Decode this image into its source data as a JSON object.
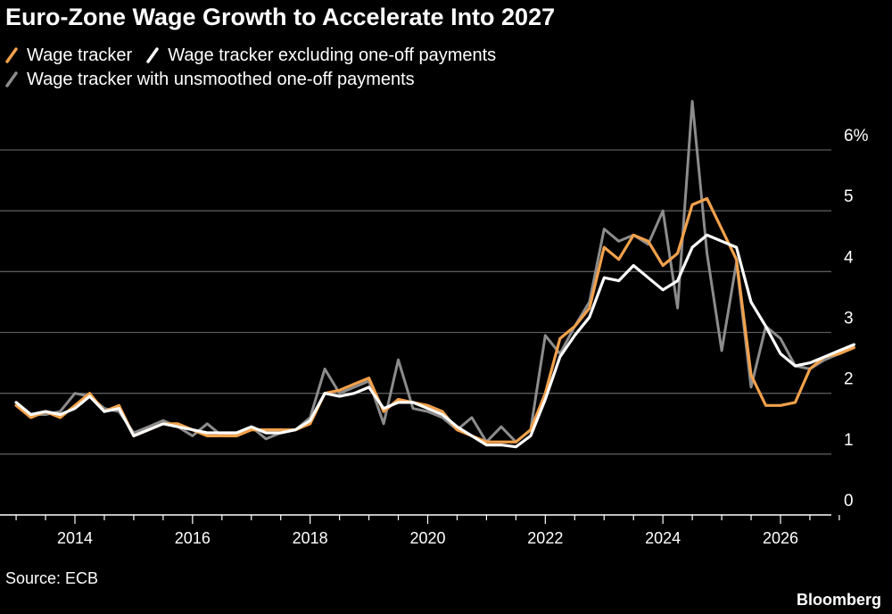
{
  "chart_data": {
    "type": "line",
    "title": "Euro-Zone Wage Growth to Accelerate Into 2027",
    "xlabel": "",
    "ylabel": "",
    "y_unit": "%",
    "ylim": [
      0,
      6.5
    ],
    "xlim": [
      2012.9,
      2027.5
    ],
    "y_ticks": [
      0,
      1,
      2,
      3,
      4,
      5,
      6
    ],
    "y_tick_labels": [
      "0",
      "1",
      "2",
      "3",
      "4",
      "5",
      "6%"
    ],
    "x_ticks": [
      2014,
      2016,
      2018,
      2020,
      2022,
      2024,
      2026
    ],
    "x_tick_labels": [
      "2014",
      "2016",
      "2018",
      "2020",
      "2022",
      "2024",
      "2026"
    ],
    "grid": true,
    "legend_position": "top-left",
    "series": [
      {
        "name": "Wage tracker",
        "color": "#f2a14b",
        "x": [
          2013.0,
          2013.25,
          2013.5,
          2013.75,
          2014.0,
          2014.25,
          2014.5,
          2014.75,
          2015.0,
          2015.25,
          2015.5,
          2015.75,
          2016.0,
          2016.25,
          2016.5,
          2016.75,
          2017.0,
          2017.25,
          2017.5,
          2017.75,
          2018.0,
          2018.25,
          2018.5,
          2018.75,
          2019.0,
          2019.25,
          2019.5,
          2019.75,
          2020.0,
          2020.25,
          2020.5,
          2020.75,
          2021.0,
          2021.25,
          2021.5,
          2021.75,
          2022.0,
          2022.25,
          2022.5,
          2022.75,
          2023.0,
          2023.25,
          2023.5,
          2023.75,
          2024.0,
          2024.25,
          2024.5,
          2024.75,
          2025.0,
          2025.25,
          2025.5,
          2025.75,
          2026.0,
          2026.25,
          2026.5,
          2026.75,
          2027.0,
          2027.25
        ],
        "values": [
          1.8,
          1.6,
          1.7,
          1.6,
          1.8,
          2.0,
          1.7,
          1.8,
          1.3,
          1.4,
          1.5,
          1.5,
          1.4,
          1.3,
          1.3,
          1.3,
          1.4,
          1.4,
          1.4,
          1.4,
          1.5,
          2.0,
          2.05,
          2.15,
          2.25,
          1.7,
          1.9,
          1.85,
          1.8,
          1.7,
          1.4,
          1.3,
          1.2,
          1.2,
          1.2,
          1.4,
          2.0,
          2.9,
          3.1,
          3.4,
          4.4,
          4.2,
          4.6,
          4.5,
          4.1,
          4.3,
          5.1,
          5.2,
          4.7,
          4.2,
          2.3,
          1.8,
          1.8,
          1.85,
          2.4,
          2.6,
          2.65,
          2.75
        ]
      },
      {
        "name": "Wage tracker excluding one-off payments",
        "color": "#ffffff",
        "x": [
          2013.0,
          2013.25,
          2013.5,
          2013.75,
          2014.0,
          2014.25,
          2014.5,
          2014.75,
          2015.0,
          2015.25,
          2015.5,
          2015.75,
          2016.0,
          2016.25,
          2016.5,
          2016.75,
          2017.0,
          2017.25,
          2017.5,
          2017.75,
          2018.0,
          2018.25,
          2018.5,
          2018.75,
          2019.0,
          2019.25,
          2019.5,
          2019.75,
          2020.0,
          2020.25,
          2020.5,
          2020.75,
          2021.0,
          2021.25,
          2021.5,
          2021.75,
          2022.0,
          2022.25,
          2022.5,
          2022.75,
          2023.0,
          2023.25,
          2023.5,
          2023.75,
          2024.0,
          2024.25,
          2024.5,
          2024.75,
          2025.0,
          2025.25,
          2025.5,
          2025.75,
          2026.0,
          2026.25,
          2026.5,
          2026.75,
          2027.0,
          2027.25
        ],
        "values": [
          1.85,
          1.65,
          1.7,
          1.65,
          1.75,
          1.95,
          1.7,
          1.75,
          1.3,
          1.4,
          1.5,
          1.45,
          1.4,
          1.35,
          1.35,
          1.35,
          1.45,
          1.35,
          1.35,
          1.4,
          1.55,
          2.0,
          1.95,
          2.0,
          2.1,
          1.75,
          1.85,
          1.85,
          1.75,
          1.65,
          1.45,
          1.3,
          1.15,
          1.15,
          1.12,
          1.3,
          1.9,
          2.6,
          2.95,
          3.25,
          3.9,
          3.85,
          4.1,
          3.9,
          3.7,
          3.85,
          4.4,
          4.6,
          4.5,
          4.4,
          3.5,
          3.1,
          2.65,
          2.45,
          2.5,
          2.6,
          2.7,
          2.8
        ]
      },
      {
        "name": "Wage tracker with unsmoothed one-off payments",
        "color": "#8c8c8c",
        "x": [
          2013.0,
          2013.25,
          2013.5,
          2013.75,
          2014.0,
          2014.25,
          2014.5,
          2014.75,
          2015.0,
          2015.25,
          2015.5,
          2015.75,
          2016.0,
          2016.25,
          2016.5,
          2016.75,
          2017.0,
          2017.25,
          2017.5,
          2017.75,
          2018.0,
          2018.25,
          2018.5,
          2018.75,
          2019.0,
          2019.25,
          2019.5,
          2019.75,
          2020.0,
          2020.25,
          2020.5,
          2020.75,
          2021.0,
          2021.25,
          2021.5,
          2021.75,
          2022.0,
          2022.25,
          2022.5,
          2022.75,
          2023.0,
          2023.25,
          2023.5,
          2023.75,
          2024.0,
          2024.25,
          2024.5,
          2024.75,
          2025.0,
          2025.25,
          2025.5,
          2025.75,
          2026.0,
          2026.25,
          2026.5,
          2026.75,
          2027.0,
          2027.25
        ],
        "values": [
          1.8,
          1.65,
          1.65,
          1.7,
          2.0,
          1.95,
          1.75,
          1.7,
          1.35,
          1.45,
          1.55,
          1.45,
          1.3,
          1.5,
          1.3,
          1.35,
          1.45,
          1.25,
          1.35,
          1.4,
          1.6,
          2.4,
          2.0,
          2.1,
          2.2,
          1.5,
          2.55,
          1.75,
          1.7,
          1.6,
          1.4,
          1.6,
          1.2,
          1.45,
          1.2,
          1.4,
          2.95,
          2.65,
          3.1,
          3.5,
          4.7,
          4.5,
          4.6,
          4.45,
          5.0,
          3.4,
          6.8,
          4.3,
          2.7,
          4.15,
          2.1,
          3.1,
          2.9,
          2.45,
          2.4,
          2.55,
          2.65,
          2.8
        ]
      }
    ]
  },
  "legend": {
    "swatch_style": "slash"
  },
  "footer": {
    "source": "Source: ECB",
    "brand": "Bloomberg"
  }
}
